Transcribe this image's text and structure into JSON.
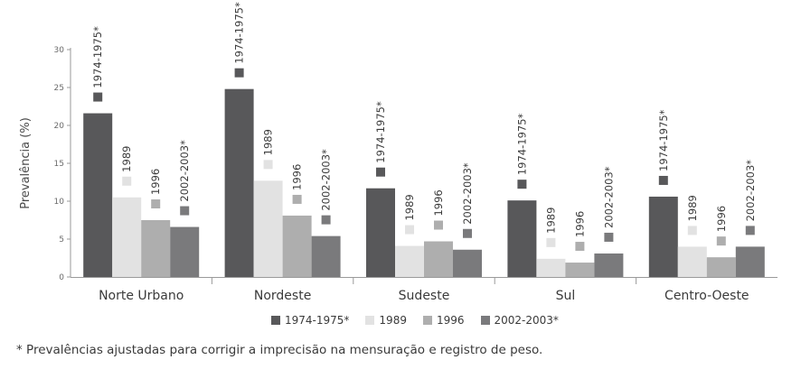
{
  "chart_data": {
    "type": "bar",
    "ylabel": "Prevalência (%)",
    "ylim": [
      0,
      30
    ],
    "yticks": [
      "0",
      "5",
      "10",
      "15",
      "20",
      "25",
      "30"
    ],
    "grid": false,
    "legend_position": "bottom",
    "categories": [
      "Norte Urbano",
      "Nordeste",
      "Sudeste",
      "Sul",
      "Centro-Oeste"
    ],
    "series": [
      {
        "name": "1974-1975*",
        "color": "#58585a",
        "values": [
          21.6,
          24.8,
          11.7,
          10.1,
          10.6
        ]
      },
      {
        "name": "1989",
        "color": "#e2e2e2",
        "values": [
          10.5,
          12.7,
          4.1,
          2.4,
          4.0
        ]
      },
      {
        "name": "1996",
        "color": "#aeaeae",
        "values": [
          7.5,
          8.1,
          4.7,
          1.9,
          2.6
        ]
      },
      {
        "name": "2002-2003*",
        "color": "#7a7a7c",
        "values": [
          6.6,
          5.4,
          3.6,
          3.1,
          4.0
        ]
      }
    ]
  },
  "footnote": "* Prevalências ajustadas para corrigir a imprecisão na mensuração e registro de peso."
}
